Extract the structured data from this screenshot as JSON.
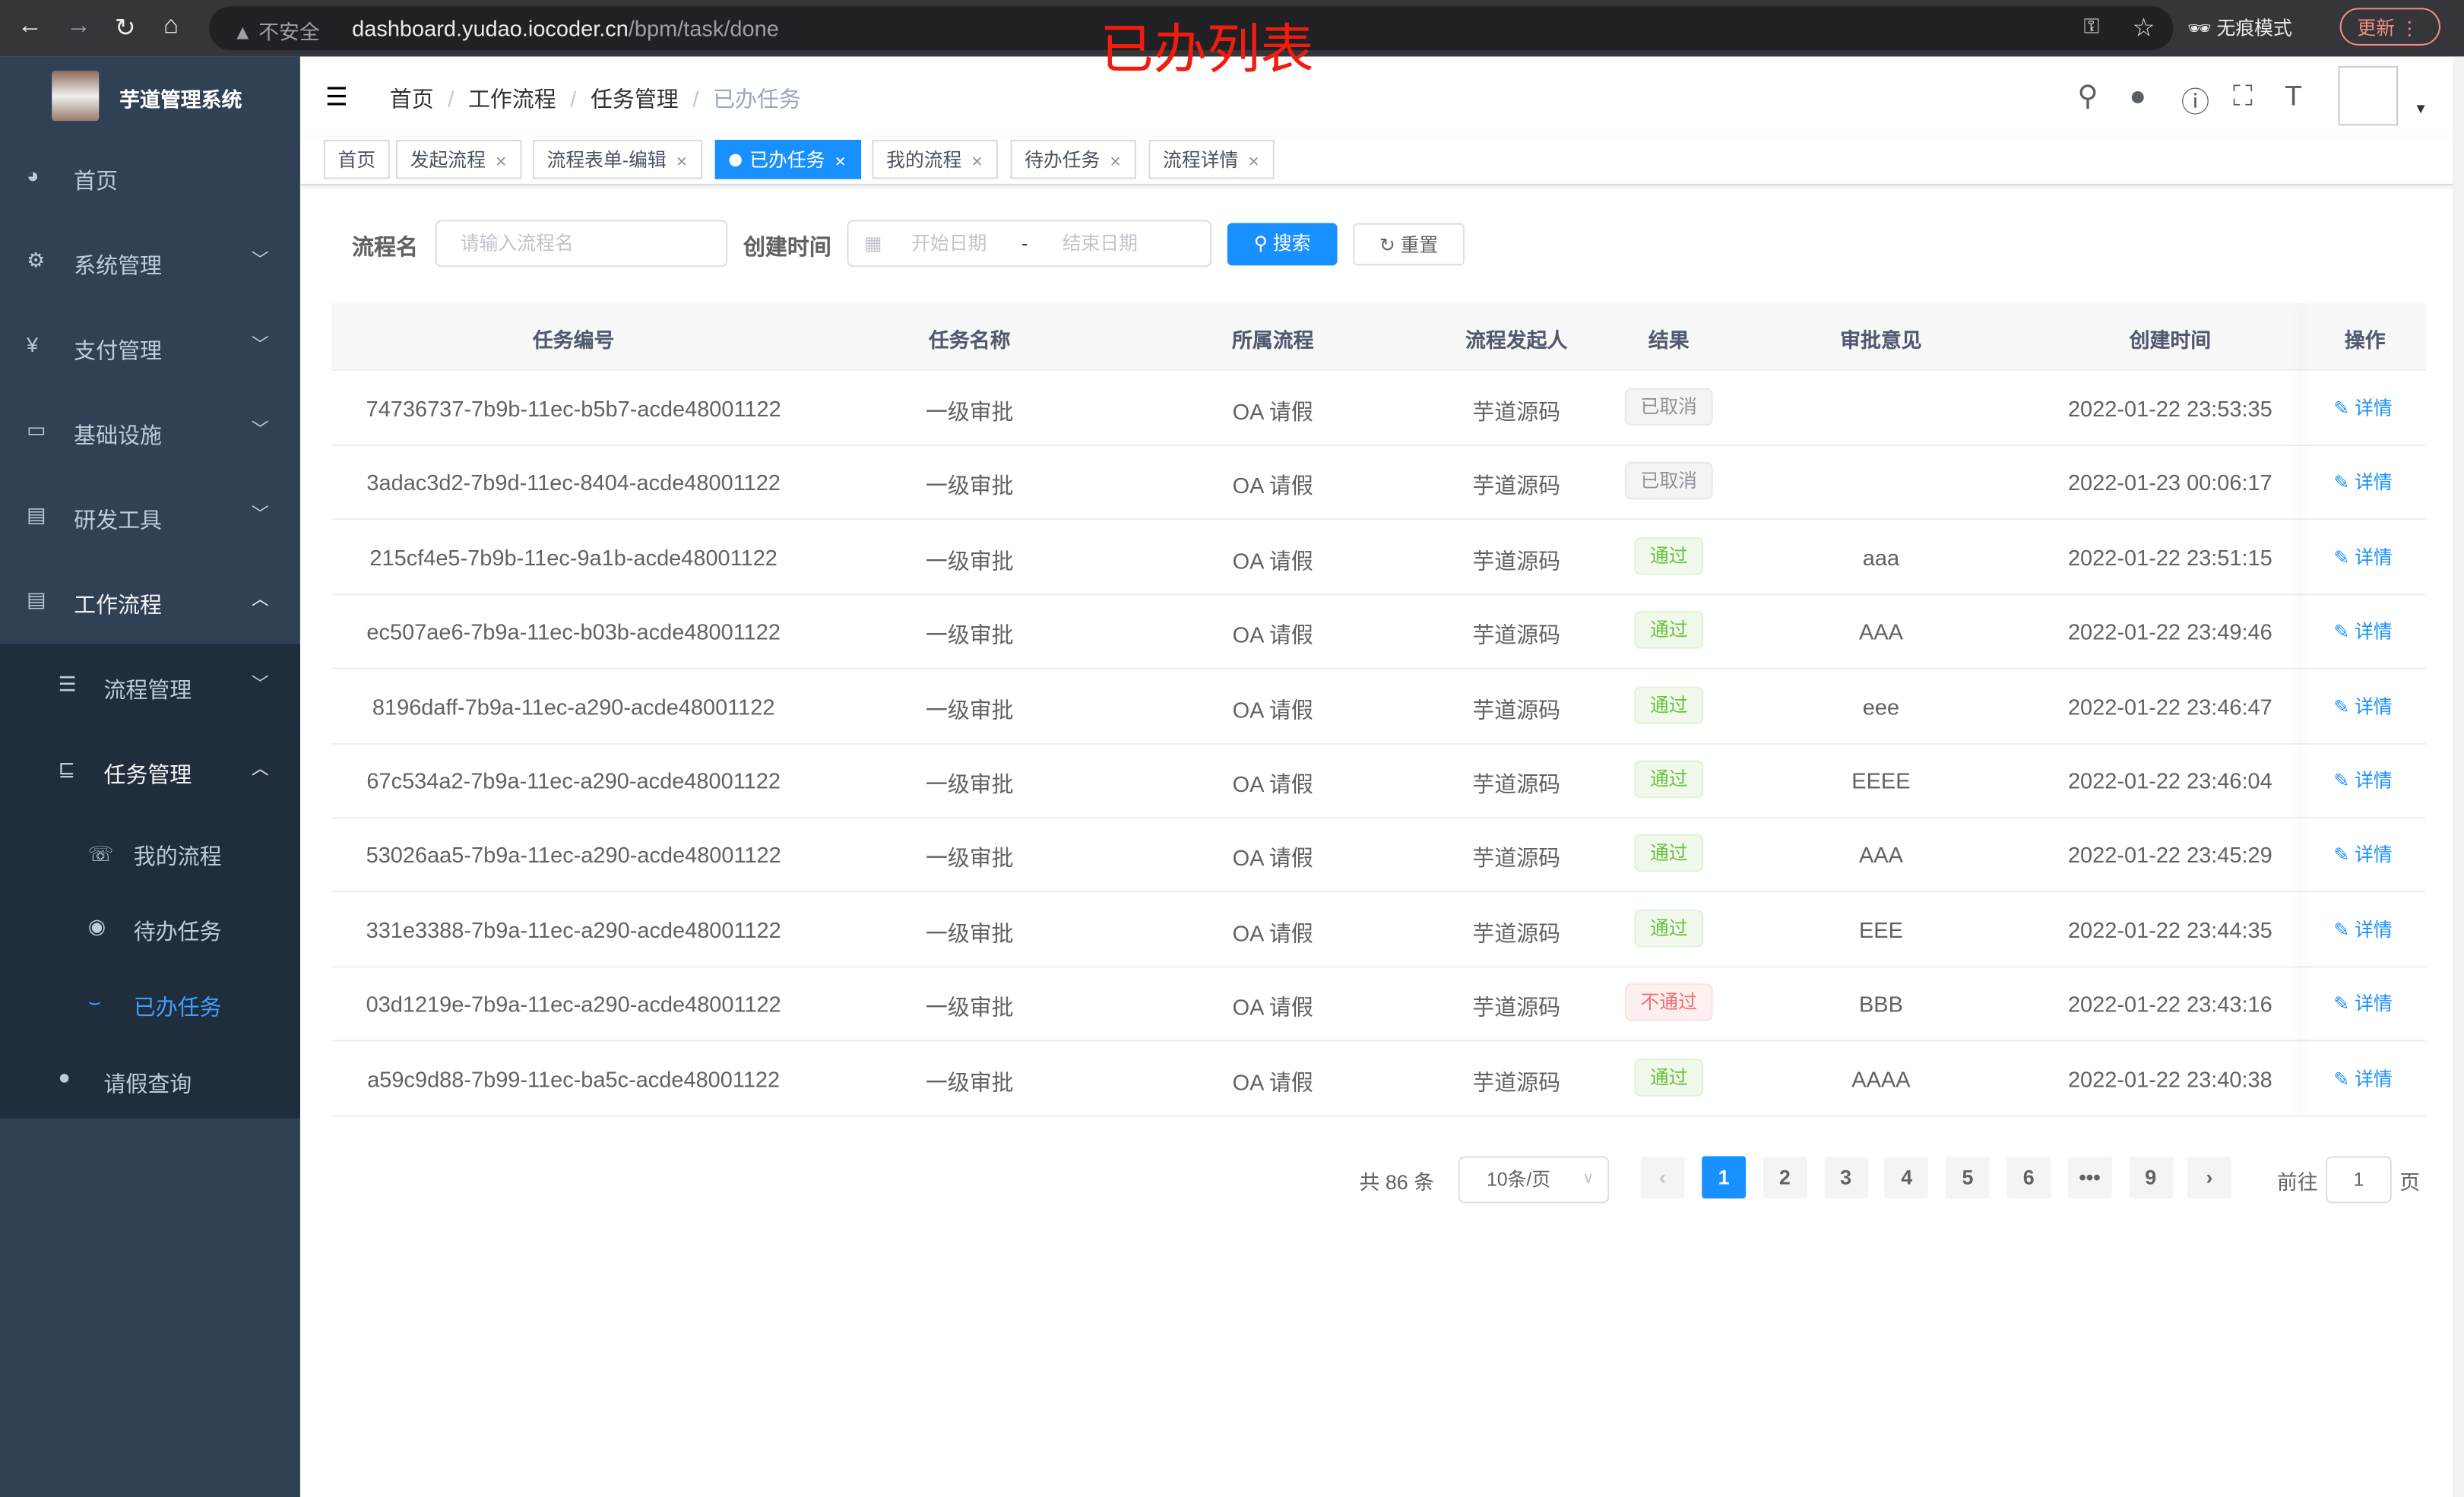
{
  "browser": {
    "insecure": "不安全",
    "url_host": "dashboard.yudao.iocoder.cn",
    "url_path": "/bpm/task/done",
    "incognito": "无痕模式",
    "update": "更新"
  },
  "overlay_title": "已办列表",
  "sidebar": {
    "title": "芋道管理系统",
    "items": [
      {
        "label": "首页",
        "icon": "dashboard-icon"
      },
      {
        "label": "系统管理",
        "icon": "gear-icon"
      },
      {
        "label": "支付管理",
        "icon": "yen-icon"
      },
      {
        "label": "基础设施",
        "icon": "monitor-icon"
      },
      {
        "label": "研发工具",
        "icon": "toolbox-icon"
      },
      {
        "label": "工作流程",
        "icon": "toolbox-icon"
      },
      {
        "label": "流程管理",
        "icon": "list-icon"
      },
      {
        "label": "任务管理",
        "icon": "tree-icon"
      },
      {
        "label": "我的流程",
        "icon": "chat-icon"
      },
      {
        "label": "待办任务",
        "icon": "eye-icon"
      },
      {
        "label": "已办任务",
        "icon": "done-icon"
      },
      {
        "label": "请假查询",
        "icon": "user-icon"
      }
    ]
  },
  "breadcrumb": [
    "首页",
    "工作流程",
    "任务管理",
    "已办任务"
  ],
  "tags": [
    "首页",
    "发起流程",
    "流程表单-编辑",
    "已办任务",
    "我的流程",
    "待办任务",
    "流程详情"
  ],
  "form": {
    "name_label": "流程名",
    "name_placeholder": "请输入流程名",
    "time_label": "创建时间",
    "start_placeholder": "开始日期",
    "sep": "-",
    "end_placeholder": "结束日期",
    "search": "搜索",
    "reset": "重置"
  },
  "table": {
    "headers": [
      "任务编号",
      "任务名称",
      "所属流程",
      "流程发起人",
      "结果",
      "审批意见",
      "创建时间",
      "操作"
    ],
    "rows": [
      {
        "id": "74736737-7b9b-11ec-b5b7-acde48001122",
        "name": "一级审批",
        "process": "OA 请假",
        "starter": "芋道源码",
        "result": "已取消",
        "status": "gray",
        "comment": "",
        "time": "2022-01-22 23:53:35",
        "op": "详情"
      },
      {
        "id": "3adac3d2-7b9d-11ec-8404-acde48001122",
        "name": "一级审批",
        "process": "OA 请假",
        "starter": "芋道源码",
        "result": "已取消",
        "status": "gray",
        "comment": "",
        "time": "2022-01-23 00:06:17",
        "op": "详情"
      },
      {
        "id": "215cf4e5-7b9b-11ec-9a1b-acde48001122",
        "name": "一级审批",
        "process": "OA 请假",
        "starter": "芋道源码",
        "result": "通过",
        "status": "green",
        "comment": "aaa",
        "time": "2022-01-22 23:51:15",
        "op": "详情"
      },
      {
        "id": "ec507ae6-7b9a-11ec-b03b-acde48001122",
        "name": "一级审批",
        "process": "OA 请假",
        "starter": "芋道源码",
        "result": "通过",
        "status": "green",
        "comment": "AAA",
        "time": "2022-01-22 23:49:46",
        "op": "详情"
      },
      {
        "id": "8196daff-7b9a-11ec-a290-acde48001122",
        "name": "一级审批",
        "process": "OA 请假",
        "starter": "芋道源码",
        "result": "通过",
        "status": "green",
        "comment": "eee",
        "time": "2022-01-22 23:46:47",
        "op": "详情"
      },
      {
        "id": "67c534a2-7b9a-11ec-a290-acde48001122",
        "name": "一级审批",
        "process": "OA 请假",
        "starter": "芋道源码",
        "result": "通过",
        "status": "green",
        "comment": "EEEE",
        "time": "2022-01-22 23:46:04",
        "op": "详情"
      },
      {
        "id": "53026aa5-7b9a-11ec-a290-acde48001122",
        "name": "一级审批",
        "process": "OA 请假",
        "starter": "芋道源码",
        "result": "通过",
        "status": "green",
        "comment": "AAA",
        "time": "2022-01-22 23:45:29",
        "op": "详情"
      },
      {
        "id": "331e3388-7b9a-11ec-a290-acde48001122",
        "name": "一级审批",
        "process": "OA 请假",
        "starter": "芋道源码",
        "result": "通过",
        "status": "green",
        "comment": "EEE",
        "time": "2022-01-22 23:44:35",
        "op": "详情"
      },
      {
        "id": "03d1219e-7b9a-11ec-a290-acde48001122",
        "name": "一级审批",
        "process": "OA 请假",
        "starter": "芋道源码",
        "result": "不通过",
        "status": "red",
        "comment": "BBB",
        "time": "2022-01-22 23:43:16",
        "op": "详情"
      },
      {
        "id": "a59c9d88-7b99-11ec-ba5c-acde48001122",
        "name": "一级审批",
        "process": "OA 请假",
        "starter": "芋道源码",
        "result": "通过",
        "status": "green",
        "comment": "AAAA",
        "time": "2022-01-22 23:40:38",
        "op": "详情"
      }
    ]
  },
  "pagination": {
    "total": "共 86 条",
    "page_size": "10条/页",
    "pages": [
      "1",
      "2",
      "3",
      "4",
      "5",
      "6",
      "•••",
      "9"
    ],
    "current": "1",
    "goto_label": "前往",
    "goto_value": "1",
    "page_suffix": "页"
  },
  "colors": {
    "primary": "#1890ff",
    "sidebar": "#304156",
    "overlay": "#f21b0e"
  }
}
